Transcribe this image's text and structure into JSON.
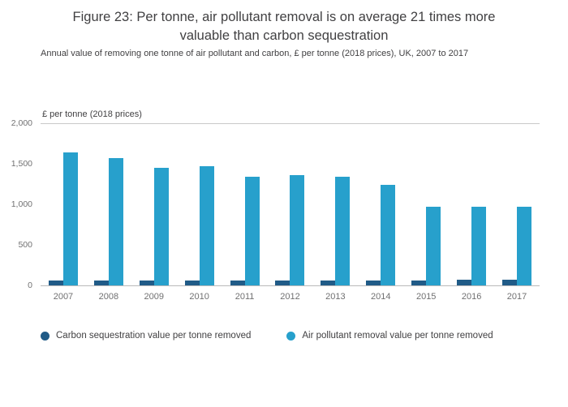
{
  "chart_data": {
    "type": "bar",
    "title": "Figure 23: Per tonne, air pollutant removal is on average 21 times more valuable than carbon sequestration",
    "subtitle": "Annual value of removing one tonne of air pollutant and carbon, £ per tonne (2018 prices), UK, 2007 to 2017",
    "axis_unit_label": "£ per tonne (2018 prices)",
    "categories": [
      "2007",
      "2008",
      "2009",
      "2010",
      "2011",
      "2012",
      "2013",
      "2014",
      "2015",
      "2016",
      "2017"
    ],
    "series": [
      {
        "name": "Carbon sequestration value per tonne removed",
        "color": "#205b87",
        "values": [
          62,
          62,
          62,
          63,
          63,
          64,
          64,
          65,
          65,
          66,
          70
        ]
      },
      {
        "name": "Air pollutant removal value per tonne removed",
        "color": "#27a0cc",
        "values": [
          1640,
          1575,
          1455,
          1475,
          1345,
          1360,
          1345,
          1245,
          975,
          975,
          975
        ]
      }
    ],
    "xlabel": "",
    "ylabel": "£ per tonne (2018 prices)",
    "ylim": [
      0,
      2000
    ],
    "yticks": [
      0,
      500,
      1000,
      1500,
      2000
    ],
    "ytick_labels": [
      "0",
      "500",
      "1,000",
      "1,500",
      "2,000"
    ],
    "grid": "top line and baseline only",
    "legend_position": "bottom"
  }
}
